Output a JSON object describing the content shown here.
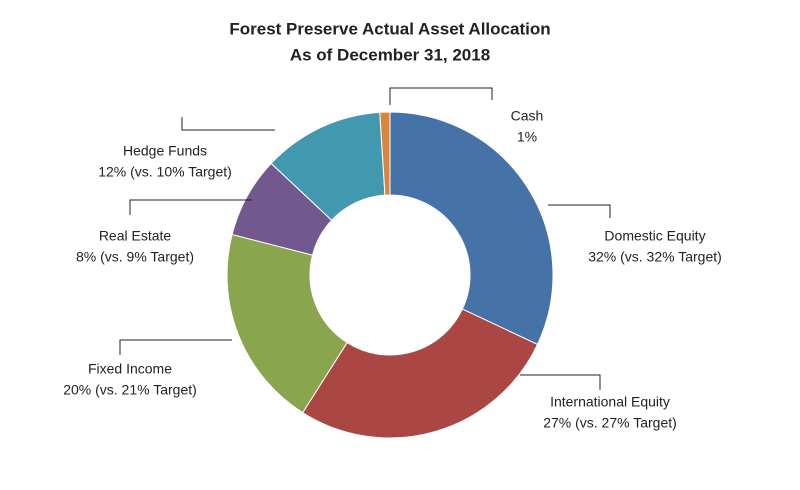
{
  "chart_data": {
    "type": "donut",
    "title": "Forest Preserve Actual Asset Allocation",
    "subtitle": "As of December 31, 2018",
    "categories": [
      "Domestic Equity",
      "International Equity",
      "Fixed Income",
      "Real Estate",
      "Hedge Funds",
      "Cash"
    ],
    "values": [
      32,
      27,
      20,
      8,
      12,
      1
    ],
    "value_labels": [
      "32% (vs. 32% Target)",
      "27% (vs. 27% Target)",
      "20% (vs. 21% Target)",
      "8% (vs. 9% Target)",
      "12% (vs. 10% Target)",
      "1%"
    ],
    "colors": [
      "#4572a7",
      "#aa4643",
      "#89a54e",
      "#71588f",
      "#4198af",
      "#db843d"
    ]
  }
}
